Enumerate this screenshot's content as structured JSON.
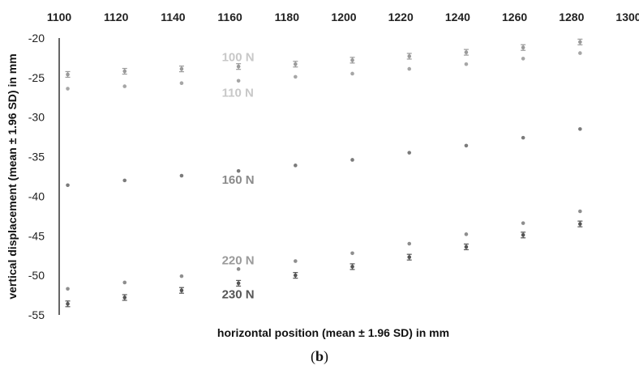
{
  "chart_data": {
    "type": "scatter",
    "title": "",
    "xlabel": "horizontal position (mean ± 1.96 SD)  in mm",
    "ylabel": "vertical displacement (mean ± 1.96 SD) in mm",
    "caption_prefix": "(",
    "caption_letter": "b",
    "caption_suffix": ")",
    "xlim": [
      1100,
      1300
    ],
    "ylim": [
      -55,
      -20
    ],
    "x_axis_position": "top",
    "x_ticks": [
      1100,
      1120,
      1140,
      1160,
      1180,
      1200,
      1220,
      1240,
      1260,
      1280,
      1300
    ],
    "y_ticks": [
      -20,
      -25,
      -30,
      -35,
      -40,
      -45,
      -50,
      -55
    ],
    "grid": false,
    "legend": "none",
    "x": [
      1103,
      1123,
      1143,
      1163,
      1183,
      1203,
      1223,
      1243,
      1263,
      1283
    ],
    "series": [
      {
        "name": "100 N",
        "color": "#9a9a9a",
        "errorbars": true,
        "values": [
          -24.6,
          -24.2,
          -23.9,
          -23.6,
          -23.3,
          -22.8,
          -22.3,
          -21.8,
          -21.2,
          -20.5
        ]
      },
      {
        "name": "110 N",
        "color": "#a6a6a6",
        "errorbars": false,
        "values": [
          -26.4,
          -26.1,
          -25.7,
          -25.4,
          -24.9,
          -24.5,
          -23.9,
          -23.3,
          -22.6,
          -21.9
        ]
      },
      {
        "name": "160 N",
        "color": "#7b7b7b",
        "errorbars": false,
        "values": [
          -38.6,
          -38.0,
          -37.4,
          -36.8,
          -36.1,
          -35.4,
          -34.5,
          -33.6,
          -32.6,
          -31.5
        ]
      },
      {
        "name": "220 N",
        "color": "#8e8e8e",
        "errorbars": false,
        "values": [
          -51.7,
          -50.9,
          -50.1,
          -49.2,
          -48.2,
          -47.2,
          -46.0,
          -44.8,
          -43.4,
          -41.9
        ]
      },
      {
        "name": "230 N",
        "color": "#555555",
        "errorbars": true,
        "values": [
          -53.6,
          -52.8,
          -51.9,
          -51.0,
          -50.0,
          -48.9,
          -47.7,
          -46.4,
          -44.9,
          -43.5
        ]
      }
    ],
    "series_labels": [
      {
        "text": "100 N",
        "color": "#c8c8c8",
        "x": 1160,
        "y": -22.4
      },
      {
        "text": "110 N",
        "color": "#c8c8c8",
        "x": 1160,
        "y": -26.9
      },
      {
        "text": "160 N",
        "color": "#8a8a8a",
        "x": 1160,
        "y": -37.9
      },
      {
        "text": "220 N",
        "color": "#9a9a9a",
        "x": 1160,
        "y": -48.1
      },
      {
        "text": "230 N",
        "color": "#555555",
        "x": 1160,
        "y": -52.4
      }
    ]
  }
}
